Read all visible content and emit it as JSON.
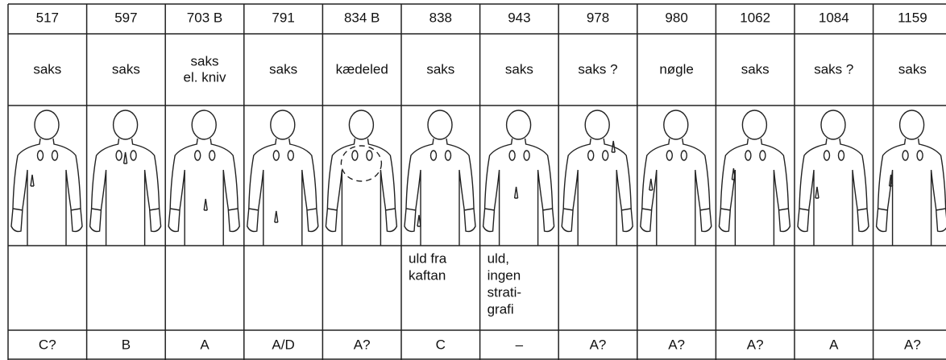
{
  "columns": [
    {
      "number": "517",
      "object": [
        "saks"
      ],
      "code": "C?"
    },
    {
      "number": "597",
      "object": [
        "saks"
      ],
      "code": "B"
    },
    {
      "number": "703 B",
      "object": [
        "saks",
        "el. kniv"
      ],
      "code": "A"
    },
    {
      "number": "791",
      "object": [
        "saks"
      ],
      "code": "A/D"
    },
    {
      "number": "834 B",
      "object": [
        "kædeled"
      ],
      "code": "A?"
    },
    {
      "number": "838",
      "object": [
        "saks"
      ],
      "note": [
        "uld fra",
        "kaftan"
      ],
      "code": "C"
    },
    {
      "number": "943",
      "object": [
        "saks"
      ],
      "note": [
        "uld,",
        "ingen",
        "strati-",
        "grafi"
      ],
      "code": "–"
    },
    {
      "number": "978",
      "object": [
        "saks ?"
      ],
      "code": "A?"
    },
    {
      "number": "980",
      "object": [
        "nøgle"
      ],
      "code": "A?"
    },
    {
      "number": "1062",
      "object": [
        "saks"
      ],
      "code": "A?"
    },
    {
      "number": "1084",
      "object": [
        "saks ?"
      ],
      "code": "A"
    },
    {
      "number": "1159",
      "object": [
        "saks"
      ],
      "code": "A?"
    }
  ]
}
